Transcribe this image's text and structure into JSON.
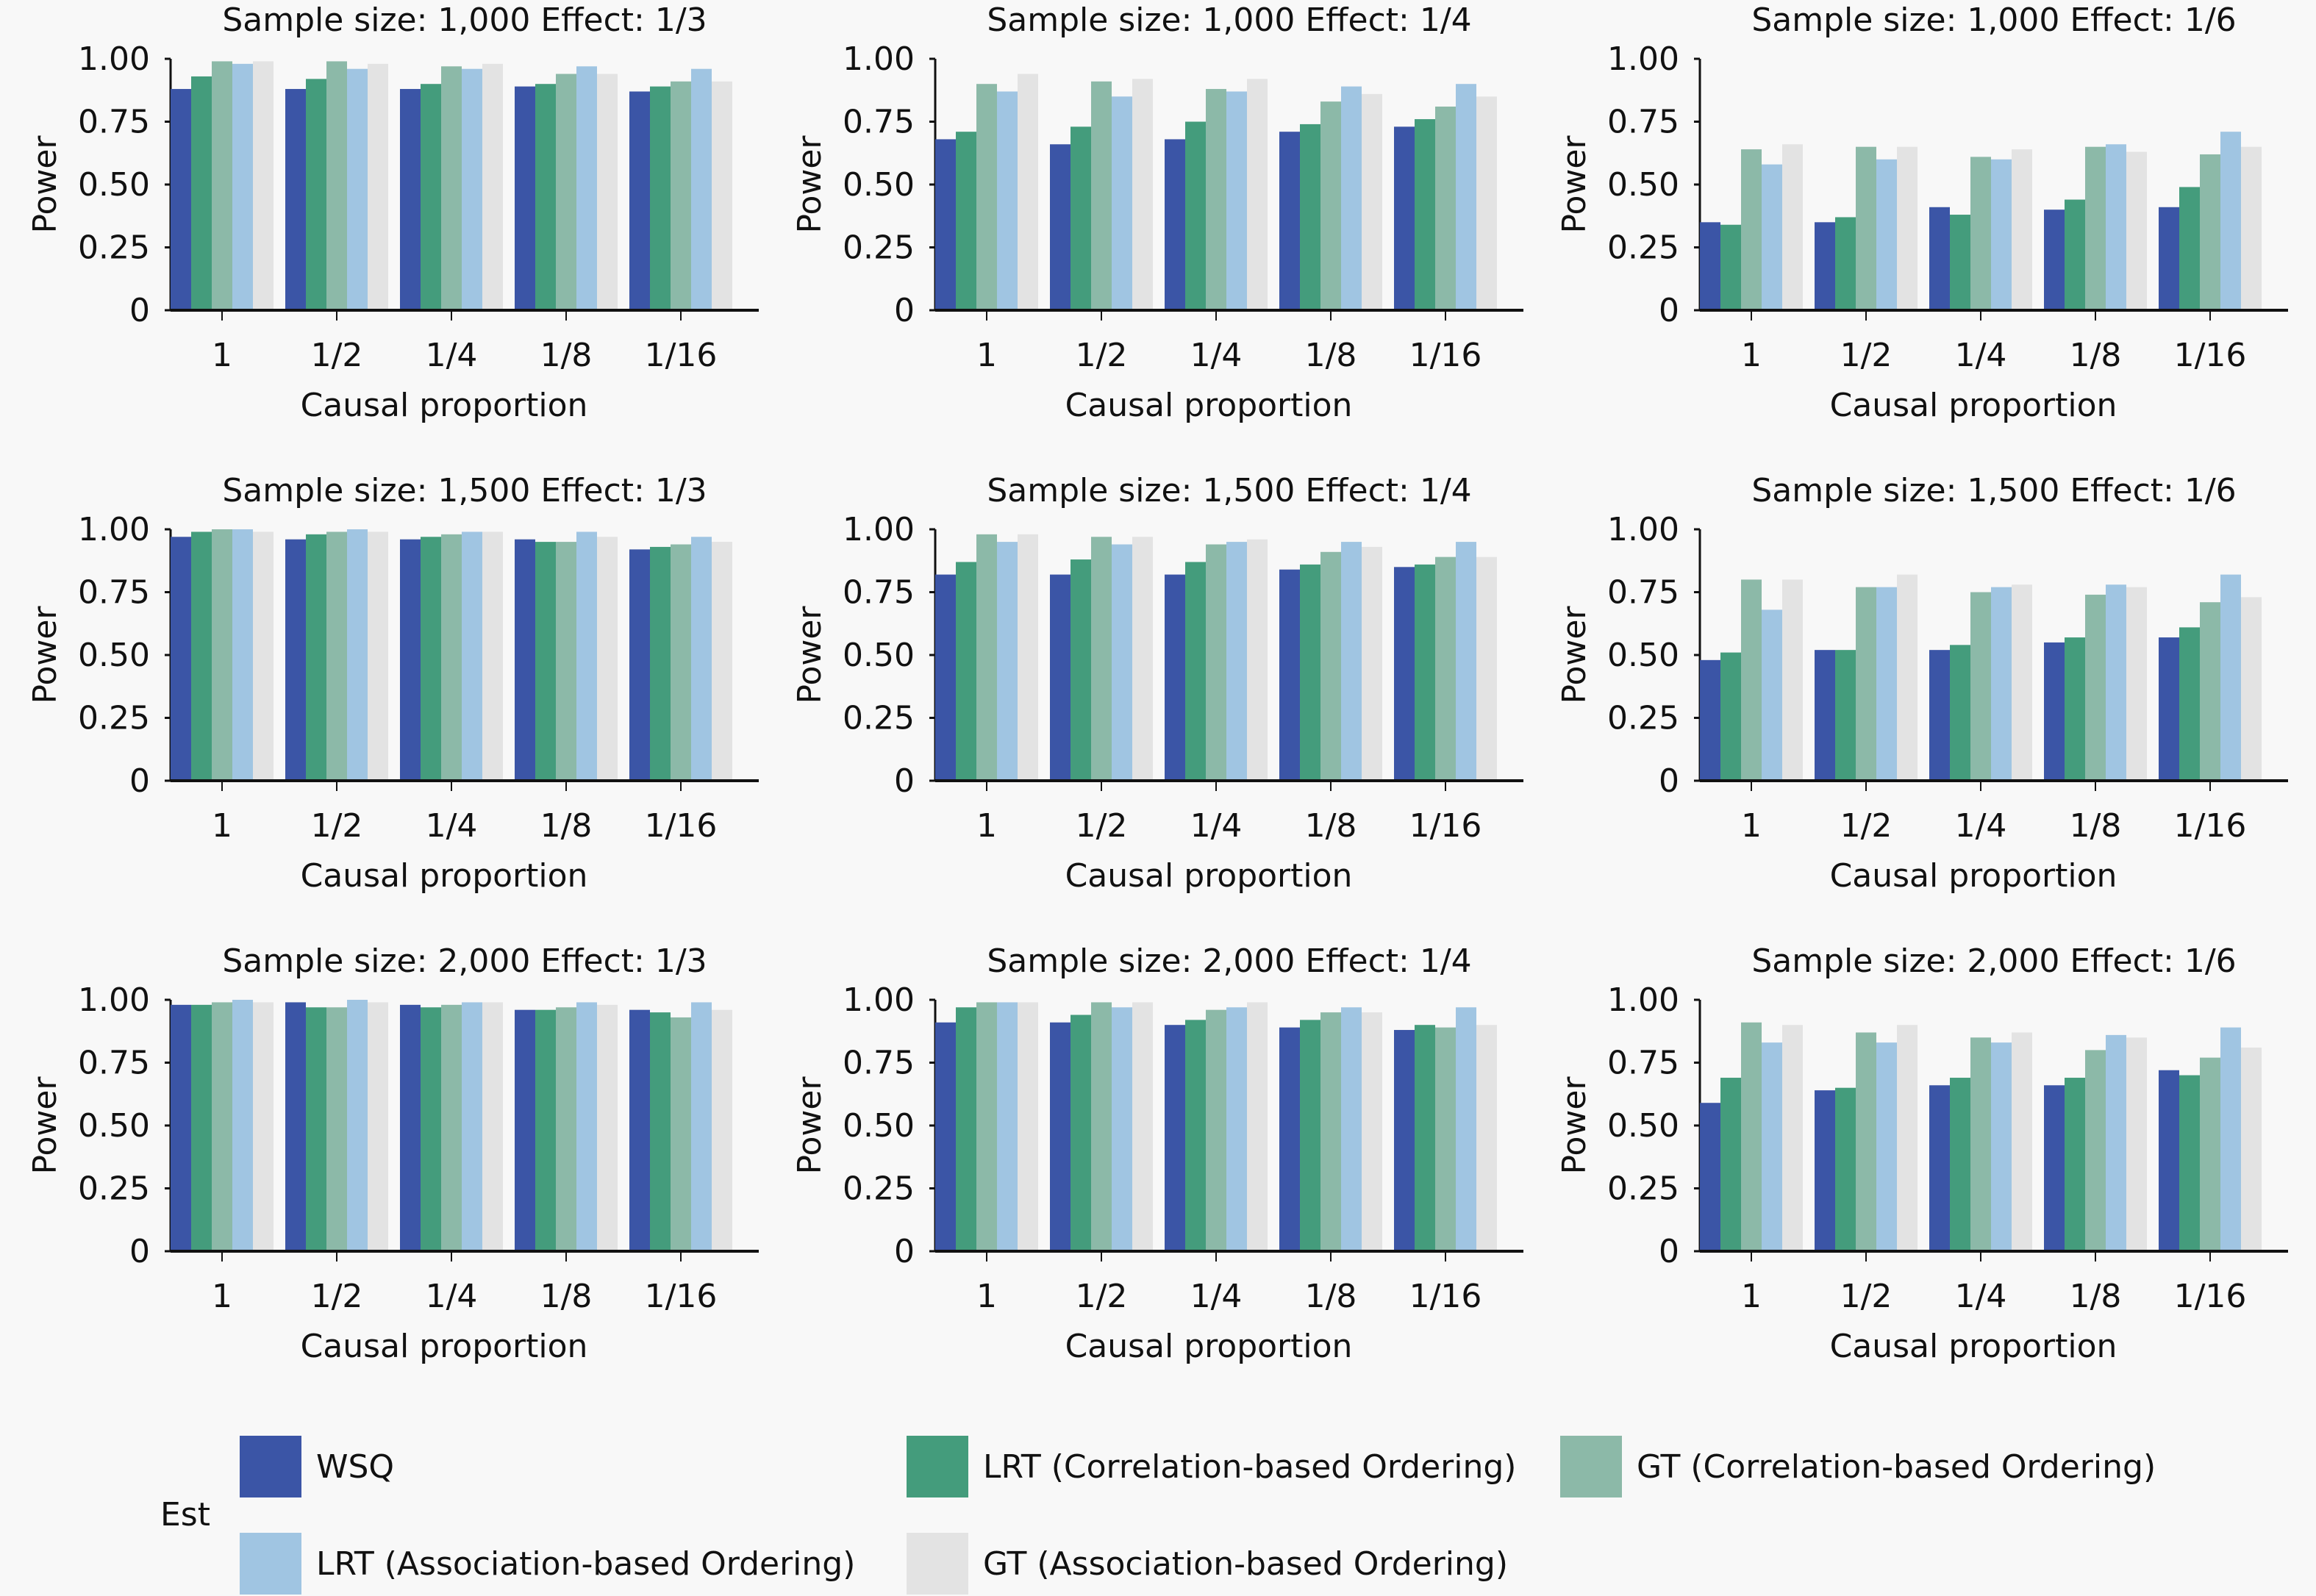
{
  "chart_data": [
    {
      "type": "bar",
      "title": "Sample size: 1,000 Effect: 1/3",
      "xlabel": "Causal proportion",
      "ylabel": "Power",
      "ylim": [
        0,
        1
      ],
      "yticks": [
        "0",
        "0.25",
        "0.50",
        "0.75",
        "1.00"
      ],
      "categories": [
        "1",
        "1/2",
        "1/4",
        "1/8",
        "1/16"
      ],
      "series": [
        {
          "name": "WSQ",
          "values": [
            0.88,
            0.88,
            0.88,
            0.89,
            0.87
          ]
        },
        {
          "name": "LRT (Correlation-based Ordering)",
          "values": [
            0.93,
            0.92,
            0.9,
            0.9,
            0.89
          ]
        },
        {
          "name": "GT (Correlation-based Ordering)",
          "values": [
            0.99,
            0.99,
            0.97,
            0.94,
            0.91
          ]
        },
        {
          "name": "LRT (Association-based Ordering)",
          "values": [
            0.98,
            0.96,
            0.96,
            0.97,
            0.96
          ]
        },
        {
          "name": "GT (Association-based Ordering)",
          "values": [
            0.99,
            0.98,
            0.98,
            0.94,
            0.91
          ]
        }
      ]
    },
    {
      "type": "bar",
      "title": "Sample size: 1,000 Effect: 1/4",
      "xlabel": "Causal proportion",
      "ylabel": "Power",
      "ylim": [
        0,
        1
      ],
      "yticks": [
        "0",
        "0.25",
        "0.50",
        "0.75",
        "1.00"
      ],
      "categories": [
        "1",
        "1/2",
        "1/4",
        "1/8",
        "1/16"
      ],
      "series": [
        {
          "name": "WSQ",
          "values": [
            0.68,
            0.66,
            0.68,
            0.71,
            0.73
          ]
        },
        {
          "name": "LRT (Correlation-based Ordering)",
          "values": [
            0.71,
            0.73,
            0.75,
            0.74,
            0.76
          ]
        },
        {
          "name": "GT (Correlation-based Ordering)",
          "values": [
            0.9,
            0.91,
            0.88,
            0.83,
            0.81
          ]
        },
        {
          "name": "LRT (Association-based Ordering)",
          "values": [
            0.87,
            0.85,
            0.87,
            0.89,
            0.9
          ]
        },
        {
          "name": "GT (Association-based Ordering)",
          "values": [
            0.94,
            0.92,
            0.92,
            0.86,
            0.85
          ]
        }
      ]
    },
    {
      "type": "bar",
      "title": "Sample size: 1,000 Effect: 1/6",
      "xlabel": "Causal proportion",
      "ylabel": "Power",
      "ylim": [
        0,
        1
      ],
      "yticks": [
        "0",
        "0.25",
        "0.50",
        "0.75",
        "1.00"
      ],
      "categories": [
        "1",
        "1/2",
        "1/4",
        "1/8",
        "1/16"
      ],
      "series": [
        {
          "name": "WSQ",
          "values": [
            0.35,
            0.35,
            0.41,
            0.4,
            0.41
          ]
        },
        {
          "name": "LRT (Correlation-based Ordering)",
          "values": [
            0.34,
            0.37,
            0.38,
            0.44,
            0.49
          ]
        },
        {
          "name": "GT (Correlation-based Ordering)",
          "values": [
            0.64,
            0.65,
            0.61,
            0.65,
            0.62
          ]
        },
        {
          "name": "LRT (Association-based Ordering)",
          "values": [
            0.58,
            0.6,
            0.6,
            0.66,
            0.71
          ]
        },
        {
          "name": "GT (Association-based Ordering)",
          "values": [
            0.66,
            0.65,
            0.64,
            0.63,
            0.65
          ]
        }
      ]
    },
    {
      "type": "bar",
      "title": "Sample size: 1,500 Effect: 1/3",
      "xlabel": "Causal proportion",
      "ylabel": "Power",
      "ylim": [
        0,
        1
      ],
      "yticks": [
        "0",
        "0.25",
        "0.50",
        "0.75",
        "1.00"
      ],
      "categories": [
        "1",
        "1/2",
        "1/4",
        "1/8",
        "1/16"
      ],
      "series": [
        {
          "name": "WSQ",
          "values": [
            0.97,
            0.96,
            0.96,
            0.96,
            0.92
          ]
        },
        {
          "name": "LRT (Correlation-based Ordering)",
          "values": [
            0.99,
            0.98,
            0.97,
            0.95,
            0.93
          ]
        },
        {
          "name": "GT (Correlation-based Ordering)",
          "values": [
            1.0,
            0.99,
            0.98,
            0.95,
            0.94
          ]
        },
        {
          "name": "LRT (Association-based Ordering)",
          "values": [
            1.0,
            1.0,
            0.99,
            0.99,
            0.97
          ]
        },
        {
          "name": "GT (Association-based Ordering)",
          "values": [
            0.99,
            0.99,
            0.99,
            0.97,
            0.95
          ]
        }
      ]
    },
    {
      "type": "bar",
      "title": "Sample size: 1,500 Effect: 1/4",
      "xlabel": "Causal proportion",
      "ylabel": "Power",
      "ylim": [
        0,
        1
      ],
      "yticks": [
        "0",
        "0.25",
        "0.50",
        "0.75",
        "1.00"
      ],
      "categories": [
        "1",
        "1/2",
        "1/4",
        "1/8",
        "1/16"
      ],
      "series": [
        {
          "name": "WSQ",
          "values": [
            0.82,
            0.82,
            0.82,
            0.84,
            0.85
          ]
        },
        {
          "name": "LRT (Correlation-based Ordering)",
          "values": [
            0.87,
            0.88,
            0.87,
            0.86,
            0.86
          ]
        },
        {
          "name": "GT (Correlation-based Ordering)",
          "values": [
            0.98,
            0.97,
            0.94,
            0.91,
            0.89
          ]
        },
        {
          "name": "LRT (Association-based Ordering)",
          "values": [
            0.95,
            0.94,
            0.95,
            0.95,
            0.95
          ]
        },
        {
          "name": "GT (Association-based Ordering)",
          "values": [
            0.98,
            0.97,
            0.96,
            0.93,
            0.89
          ]
        }
      ]
    },
    {
      "type": "bar",
      "title": "Sample size: 1,500 Effect: 1/6",
      "xlabel": "Causal proportion",
      "ylabel": "Power",
      "ylim": [
        0,
        1
      ],
      "yticks": [
        "0",
        "0.25",
        "0.50",
        "0.75",
        "1.00"
      ],
      "categories": [
        "1",
        "1/2",
        "1/4",
        "1/8",
        "1/16"
      ],
      "series": [
        {
          "name": "WSQ",
          "values": [
            0.48,
            0.52,
            0.52,
            0.55,
            0.57
          ]
        },
        {
          "name": "LRT (Correlation-based Ordering)",
          "values": [
            0.51,
            0.52,
            0.54,
            0.57,
            0.61
          ]
        },
        {
          "name": "GT (Correlation-based Ordering)",
          "values": [
            0.8,
            0.77,
            0.75,
            0.74,
            0.71
          ]
        },
        {
          "name": "LRT (Association-based Ordering)",
          "values": [
            0.68,
            0.77,
            0.77,
            0.78,
            0.82
          ]
        },
        {
          "name": "GT (Association-based Ordering)",
          "values": [
            0.8,
            0.82,
            0.78,
            0.77,
            0.73
          ]
        }
      ]
    },
    {
      "type": "bar",
      "title": "Sample size: 2,000 Effect: 1/3",
      "xlabel": "Causal proportion",
      "ylabel": "Power",
      "ylim": [
        0,
        1
      ],
      "yticks": [
        "0",
        "0.25",
        "0.50",
        "0.75",
        "1.00"
      ],
      "categories": [
        "1",
        "1/2",
        "1/4",
        "1/8",
        "1/16"
      ],
      "series": [
        {
          "name": "WSQ",
          "values": [
            0.98,
            0.99,
            0.98,
            0.96,
            0.96
          ]
        },
        {
          "name": "LRT (Correlation-based Ordering)",
          "values": [
            0.98,
            0.97,
            0.97,
            0.96,
            0.95
          ]
        },
        {
          "name": "GT (Correlation-based Ordering)",
          "values": [
            0.99,
            0.97,
            0.98,
            0.97,
            0.93
          ]
        },
        {
          "name": "LRT (Association-based Ordering)",
          "values": [
            1.0,
            1.0,
            0.99,
            0.99,
            0.99
          ]
        },
        {
          "name": "GT (Association-based Ordering)",
          "values": [
            0.99,
            0.99,
            0.99,
            0.98,
            0.96
          ]
        }
      ]
    },
    {
      "type": "bar",
      "title": "Sample size: 2,000 Effect: 1/4",
      "xlabel": "Causal proportion",
      "ylabel": "Power",
      "ylim": [
        0,
        1
      ],
      "yticks": [
        "0",
        "0.25",
        "0.50",
        "0.75",
        "1.00"
      ],
      "categories": [
        "1",
        "1/2",
        "1/4",
        "1/8",
        "1/16"
      ],
      "series": [
        {
          "name": "WSQ",
          "values": [
            0.91,
            0.91,
            0.9,
            0.89,
            0.88
          ]
        },
        {
          "name": "LRT (Correlation-based Ordering)",
          "values": [
            0.97,
            0.94,
            0.92,
            0.92,
            0.9
          ]
        },
        {
          "name": "GT (Correlation-based Ordering)",
          "values": [
            0.99,
            0.99,
            0.96,
            0.95,
            0.89
          ]
        },
        {
          "name": "LRT (Association-based Ordering)",
          "values": [
            0.99,
            0.97,
            0.97,
            0.97,
            0.97
          ]
        },
        {
          "name": "GT (Association-based Ordering)",
          "values": [
            0.99,
            0.99,
            0.99,
            0.95,
            0.9
          ]
        }
      ]
    },
    {
      "type": "bar",
      "title": "Sample size: 2,000 Effect: 1/6",
      "xlabel": "Causal proportion",
      "ylabel": "Power",
      "ylim": [
        0,
        1
      ],
      "yticks": [
        "0",
        "0.25",
        "0.50",
        "0.75",
        "1.00"
      ],
      "categories": [
        "1",
        "1/2",
        "1/4",
        "1/8",
        "1/16"
      ],
      "series": [
        {
          "name": "WSQ",
          "values": [
            0.59,
            0.64,
            0.66,
            0.66,
            0.72
          ]
        },
        {
          "name": "LRT (Correlation-based Ordering)",
          "values": [
            0.69,
            0.65,
            0.69,
            0.69,
            0.7
          ]
        },
        {
          "name": "GT (Correlation-based Ordering)",
          "values": [
            0.91,
            0.87,
            0.85,
            0.8,
            0.77
          ]
        },
        {
          "name": "LRT (Association-based Ordering)",
          "values": [
            0.83,
            0.83,
            0.83,
            0.86,
            0.89
          ]
        },
        {
          "name": "GT (Association-based Ordering)",
          "values": [
            0.9,
            0.9,
            0.87,
            0.85,
            0.81
          ]
        }
      ]
    }
  ],
  "legend": {
    "title": "Est",
    "items": [
      {
        "label": "WSQ",
        "color": "#3b55a6"
      },
      {
        "label": "LRT (Correlation-based Ordering)",
        "color": "#449c7c"
      },
      {
        "label": "GT (Correlation-based Ordering)",
        "color": "#8cb9a8"
      },
      {
        "label": "LRT (Association-based Ordering)",
        "color": "#a0c5e2"
      },
      {
        "label": "GT (Association-based Ordering)",
        "color": "#e3e3e3"
      }
    ]
  }
}
